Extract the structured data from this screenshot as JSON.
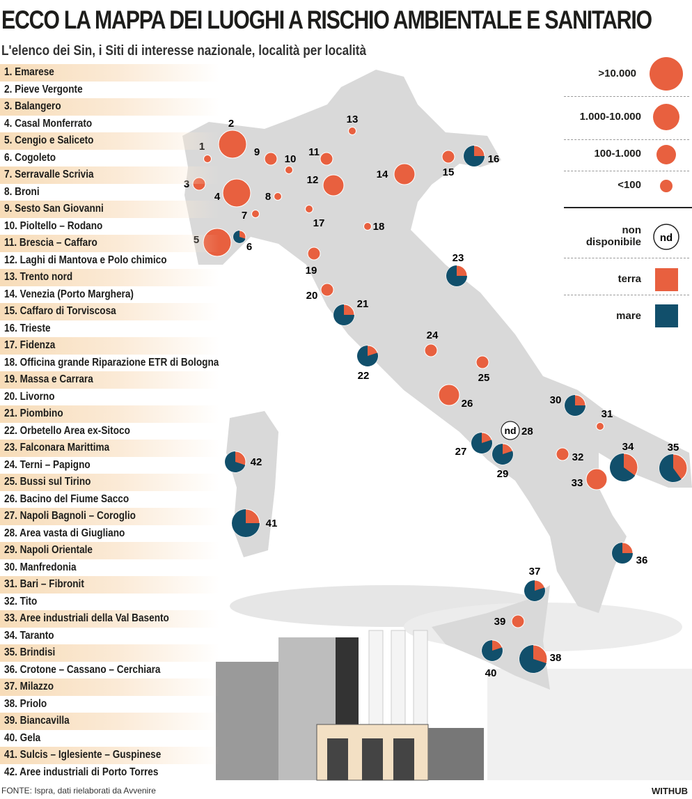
{
  "title": "ECCO LA MAPPA DEI LUOGHI A RISCHIO AMBIENTALE E SANITARIO",
  "subtitle": "L'elenco dei Sin, i Siti di interesse nazionale, località per località",
  "colors": {
    "terra": "#e8603f",
    "mare": "#114f6b",
    "land": "#d9d9d9",
    "row_shade": "#f7dcb8"
  },
  "legend": {
    "sizes": [
      ">10.000",
      "1.000-10.000",
      "100-1.000",
      "<100"
    ],
    "nd_label": "non disponibile",
    "nd_symbol": "nd",
    "terra": "terra",
    "mare": "mare"
  },
  "sites": [
    {
      "n": "1",
      "label": "1. Emarese",
      "size": "<100",
      "mare": 0
    },
    {
      "n": "2",
      "label": "2. Pieve Vergonte",
      "size": ">10.000",
      "mare": 0
    },
    {
      "n": "3",
      "label": "3. Balangero",
      "size": "100-1.000",
      "mare": 0
    },
    {
      "n": "4",
      "label": "4. Casal Monferrato",
      "size": ">10.000",
      "mare": 0
    },
    {
      "n": "5",
      "label": "5. Cengio e Saliceto",
      "size": ">10.000",
      "mare": 0
    },
    {
      "n": "6",
      "label": "6. Cogoleto",
      "size": "100-1.000",
      "mare": 0.7
    },
    {
      "n": "7",
      "label": "7. Serravalle Scrivia",
      "size": "<100",
      "mare": 0
    },
    {
      "n": "8",
      "label": "8. Broni",
      "size": "<100",
      "mare": 0
    },
    {
      "n": "9",
      "label": "9. Sesto San Giovanni",
      "size": "100-1.000",
      "mare": 0
    },
    {
      "n": "10",
      "label": "10. Pioltello – Rodano",
      "size": "<100",
      "mare": 0
    },
    {
      "n": "11",
      "label": "11. Brescia – Caffaro",
      "size": "100-1.000",
      "mare": 0
    },
    {
      "n": "12",
      "label": "12. Laghi di Mantova e Polo chimico",
      "size": "1.000-10.000",
      "mare": 0
    },
    {
      "n": "13",
      "label": "13. Trento nord",
      "size": "<100",
      "mare": 0
    },
    {
      "n": "14",
      "label": "14. Venezia (Porto Marghera)",
      "size": "1.000-10.000",
      "mare": 0
    },
    {
      "n": "15",
      "label": "15. Caffaro di Torviscosa",
      "size": "100-1.000",
      "mare": 0
    },
    {
      "n": "16",
      "label": "16. Trieste",
      "size": "1.000-10.000",
      "mare": 0.75
    },
    {
      "n": "17",
      "label": "17. Fidenza",
      "size": "<100",
      "mare": 0
    },
    {
      "n": "18",
      "label": "18. Officina grande Riparazione ETR di Bologna",
      "size": "<100",
      "mare": 0
    },
    {
      "n": "19",
      "label": "19. Massa e Carrara",
      "size": "100-1.000",
      "mare": 0
    },
    {
      "n": "20",
      "label": "20. Livorno",
      "size": "100-1.000",
      "mare": 0
    },
    {
      "n": "21",
      "label": "21. Piombino",
      "size": "1.000-10.000",
      "mare": 0.75
    },
    {
      "n": "22",
      "label": "22. Orbetello Area ex-Sitoco",
      "size": "1.000-10.000",
      "mare": 0.8
    },
    {
      "n": "23",
      "label": "23. Falconara Marittima",
      "size": "1.000-10.000",
      "mare": 0.75
    },
    {
      "n": "24",
      "label": "24. Terni – Papigno",
      "size": "100-1.000",
      "mare": 0
    },
    {
      "n": "25",
      "label": "25. Bussi sul Tirino",
      "size": "100-1.000",
      "mare": 0
    },
    {
      "n": "26",
      "label": "26. Bacino del Fiume Sacco",
      "size": "1.000-10.000",
      "mare": 0
    },
    {
      "n": "27",
      "label": "27. Napoli Bagnoli – Coroglio",
      "size": "1.000-10.000",
      "mare": 0.8
    },
    {
      "n": "28",
      "label": "28. Area vasta di Giugliano",
      "size": "nd",
      "mare": 0
    },
    {
      "n": "29",
      "label": "29. Napoli Orientale",
      "size": "1.000-10.000",
      "mare": 0.8
    },
    {
      "n": "30",
      "label": "30. Manfredonia",
      "size": "1.000-10.000",
      "mare": 0.75
    },
    {
      "n": "31",
      "label": "31. Bari – Fibronit",
      "size": "<100",
      "mare": 0
    },
    {
      "n": "32",
      "label": "32. Tito",
      "size": "100-1.000",
      "mare": 0
    },
    {
      "n": "33",
      "label": "33. Aree industriali della Val Basento",
      "size": "1.000-10.000",
      "mare": 0
    },
    {
      "n": "34",
      "label": "34. Taranto",
      "size": ">10.000",
      "mare": 0.65
    },
    {
      "n": "35",
      "label": "35. Brindisi",
      "size": ">10.000",
      "mare": 0.6
    },
    {
      "n": "36",
      "label": "36. Crotone – Cassano – Cerchiara",
      "size": "1.000-10.000",
      "mare": 0.75
    },
    {
      "n": "37",
      "label": "37. Milazzo",
      "size": "1.000-10.000",
      "mare": 0.8
    },
    {
      "n": "38",
      "label": "38. Priolo",
      "size": ">10.000",
      "mare": 0.7
    },
    {
      "n": "39",
      "label": "39. Biancavilla",
      "size": "100-1.000",
      "mare": 0
    },
    {
      "n": "40",
      "label": "40. Gela",
      "size": "1.000-10.000",
      "mare": 0.8
    },
    {
      "n": "41",
      "label": "41. Sulcis – Iglesiente – Guspinese",
      "size": ">10.000",
      "mare": 0.75
    },
    {
      "n": "42",
      "label": "42. Aree industriali di Porto Torres",
      "size": "1.000-10.000",
      "mare": 0.7
    }
  ],
  "source": "FONTE: Ispra, dati rielaborati da Avvenire",
  "brand": "WITHUB"
}
